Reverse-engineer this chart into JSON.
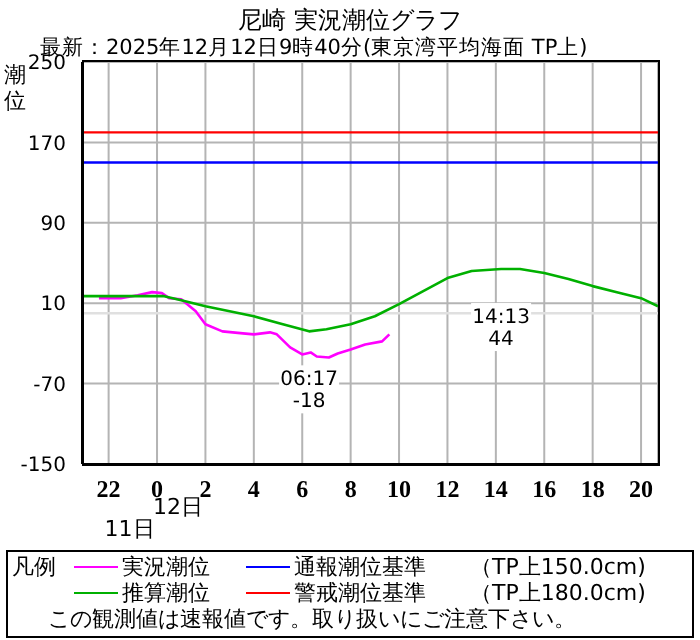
{
  "chart_data": {
    "type": "line",
    "title": "尼崎 実況潮位グラフ",
    "subtitle": "最新：2025年12月12日9時40分(東京湾平均海面 TP上)",
    "ylabel": "潮位",
    "legend_title": "凡例",
    "legend": "bottom",
    "grid": true,
    "marker": "none",
    "line_style": "solid",
    "xlim": [
      "2025-12-11T20:54",
      "2025-12-12T20:42"
    ],
    "xticks": [
      {
        "value": "2025-12-11T22:00",
        "label": "22"
      },
      {
        "value": "2025-12-12T00:00",
        "label": "0"
      },
      {
        "value": "2025-12-12T02:00",
        "label": "2"
      },
      {
        "value": "2025-12-12T04:00",
        "label": "4"
      },
      {
        "value": "2025-12-12T06:00",
        "label": "6"
      },
      {
        "value": "2025-12-12T08:00",
        "label": "8"
      },
      {
        "value": "2025-12-12T10:00",
        "label": "10"
      },
      {
        "value": "2025-12-12T12:00",
        "label": "12"
      },
      {
        "value": "2025-12-12T14:00",
        "label": "14"
      },
      {
        "value": "2025-12-12T16:00",
        "label": "16"
      },
      {
        "value": "2025-12-12T18:00",
        "label": "18"
      },
      {
        "value": "2025-12-12T20:00",
        "label": "20"
      }
    ],
    "ylim": [
      -150,
      250
    ],
    "yticks": [
      -150,
      -70,
      10,
      90,
      170,
      250
    ],
    "series": [
      {
        "name": "実況潮位",
        "color": "#ff00ff",
        "x": [
          "2025-12-11T21:36",
          "2025-12-11T22:30",
          "2025-12-11T23:12",
          "2025-12-11T23:48",
          "2025-12-12T00:12",
          "2025-12-12T00:30",
          "2025-12-12T01:00",
          "2025-12-12T01:36",
          "2025-12-12T02:00",
          "2025-12-12T02:42",
          "2025-12-12T03:33",
          "2025-12-12T04:00",
          "2025-12-12T04:40",
          "2025-12-12T04:57",
          "2025-12-12T05:30",
          "2025-12-12T06:00",
          "2025-12-12T06:21",
          "2025-12-12T06:36",
          "2025-12-12T07:06",
          "2025-12-12T07:28",
          "2025-12-12T08:00",
          "2025-12-12T08:36",
          "2025-12-12T09:18",
          "2025-12-12T09:36"
        ],
        "values": [
          15,
          15,
          18,
          21,
          20,
          15,
          14,
          2,
          -11,
          -18,
          -20,
          -21,
          -19,
          -21,
          -34,
          -41,
          -39,
          -43,
          -44,
          -40,
          -36,
          -31,
          -28,
          -21
        ]
      },
      {
        "name": "推算潮位",
        "color": "#00b000",
        "x": [
          "2025-12-11T20:54",
          "2025-12-12T00:18",
          "2025-12-12T01:00",
          "2025-12-12T02:00",
          "2025-12-12T04:00",
          "2025-12-12T05:12",
          "2025-12-12T06:17",
          "2025-12-12T07:00",
          "2025-12-12T08:00",
          "2025-12-12T09:00",
          "2025-12-12T10:00",
          "2025-12-12T11:00",
          "2025-12-12T12:00",
          "2025-12-12T13:00",
          "2025-12-12T14:13",
          "2025-12-12T15:00",
          "2025-12-12T16:00",
          "2025-12-12T17:00",
          "2025-12-12T18:00",
          "2025-12-12T19:00",
          "2025-12-12T20:00",
          "2025-12-12T20:42"
        ],
        "values": [
          17,
          17,
          13,
          7,
          -3,
          -11,
          -18,
          -16,
          -11,
          -3,
          9,
          22,
          35,
          42,
          44,
          44,
          40,
          34,
          27,
          21,
          15,
          7
        ]
      }
    ],
    "ref_lines": [
      {
        "axis": "y",
        "value": 0,
        "label": null,
        "color": "#e0e0e0"
      },
      {
        "axis": "y",
        "value": 150,
        "label": "通報潮位基準　　（TP上150.0cm)",
        "color": "#0000ff"
      },
      {
        "axis": "y",
        "value": 180,
        "label": "警戒潮位基準　　（TP上180.0cm)",
        "color": "#ff0000"
      }
    ],
    "annotations": [
      "12日",
      "11日",
      "この観測値は速報値です。取り扱いにご注意下さい。",
      {
        "text": "06:17\n-18",
        "x": "2025-12-12T06:17",
        "y": -18
      },
      {
        "text": "14:13\n44",
        "x": "2025-12-12T14:13",
        "y": 44
      }
    ]
  }
}
